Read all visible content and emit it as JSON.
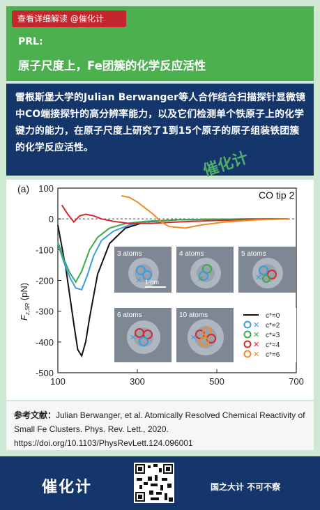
{
  "badge": {
    "label": "查看详细解读 @催化计"
  },
  "header": {
    "journal": "PRL:",
    "title": "原子尺度上，Fe团簇的化学反应活性"
  },
  "summary": {
    "text": "雷根斯堡大学的Julian Berwanger等人合作结合扫描探针显微镜中CO端接探针的高分辨率能力，以及它们检测单个铁原子上的化学键力的能力，在原子尺度上研究了1到15个原子的原子组装铁团簇的化学反应活性。"
  },
  "watermark": {
    "text": "催化计"
  },
  "figure": {
    "panel_label": "(a)",
    "tip_label": "CO tip 2",
    "ylabel": "F",
    "ylabel_sub": "z,SR",
    "ylabel_unit": " (pN)",
    "scalebar": "1 nm",
    "insets": [
      "3 atoms",
      "4 atoms",
      "5 atoms",
      "6 atoms",
      "10 atoms"
    ],
    "legend": [
      "c*=0",
      "c*=2",
      "c*=3",
      "c*=4",
      "c*=6"
    ]
  },
  "chart_data": {
    "type": "line",
    "xlabel": "",
    "ylabel": "F z,SR (pN)",
    "xlim": [
      100,
      700
    ],
    "ylim": [
      -500,
      100
    ],
    "x_ticks": [
      100,
      300,
      500,
      700
    ],
    "y_ticks": [
      100,
      0,
      -100,
      -200,
      -300,
      -400,
      -500
    ],
    "series": [
      {
        "name": "c*=0",
        "color": "#111111",
        "x": [
          100,
          120,
          140,
          150,
          160,
          170,
          180,
          200,
          230,
          270,
          320,
          400,
          500,
          600,
          680
        ],
        "y": [
          -20,
          -160,
          -340,
          -425,
          -445,
          -400,
          -320,
          -180,
          -80,
          -30,
          -10,
          -3,
          -1,
          0,
          0
        ]
      },
      {
        "name": "c*=2",
        "color": "#3a9be0",
        "x": [
          100,
          115,
          130,
          145,
          160,
          175,
          190,
          210,
          240,
          280,
          330,
          400,
          500,
          600,
          680
        ],
        "y": [
          -80,
          -140,
          -190,
          -225,
          -230,
          -180,
          -120,
          -70,
          -40,
          -20,
          -8,
          -3,
          -1,
          0,
          0
        ]
      },
      {
        "name": "c*=3",
        "color": "#3aaa4a",
        "x": [
          100,
          115,
          130,
          145,
          160,
          180,
          200,
          230,
          270,
          320,
          400,
          500,
          600,
          680
        ],
        "y": [
          -75,
          -130,
          -175,
          -205,
          -170,
          -100,
          -60,
          -30,
          -15,
          -8,
          -3,
          -1,
          0,
          0
        ]
      },
      {
        "name": "c*=4",
        "color": "#d9262c",
        "x": [
          110,
          125,
          140,
          155,
          170,
          190,
          210,
          240,
          280,
          330,
          400,
          500,
          600,
          680
        ],
        "y": [
          45,
          15,
          -10,
          10,
          15,
          10,
          0,
          -8,
          -15,
          -15,
          -10,
          -5,
          -2,
          0
        ]
      },
      {
        "name": "c*=6",
        "color": "#f08a24",
        "x": [
          260,
          280,
          300,
          320,
          340,
          360,
          380,
          420,
          460,
          520,
          600,
          680
        ],
        "y": [
          75,
          70,
          55,
          35,
          15,
          -10,
          -25,
          -30,
          -20,
          -10,
          -3,
          0
        ]
      }
    ]
  },
  "reference": {
    "label": "参考文献：",
    "text": "Julian Berwanger, et al. Atomically Resolved Chemical Reactivity of Small Fe Clusters. Phys. Rev. Lett., 2020. https://doi.org/10.1103/PhysRevLett.124.096001"
  },
  "footer": {
    "brand": "催化计",
    "slogan": "国之大计 不可不察"
  }
}
